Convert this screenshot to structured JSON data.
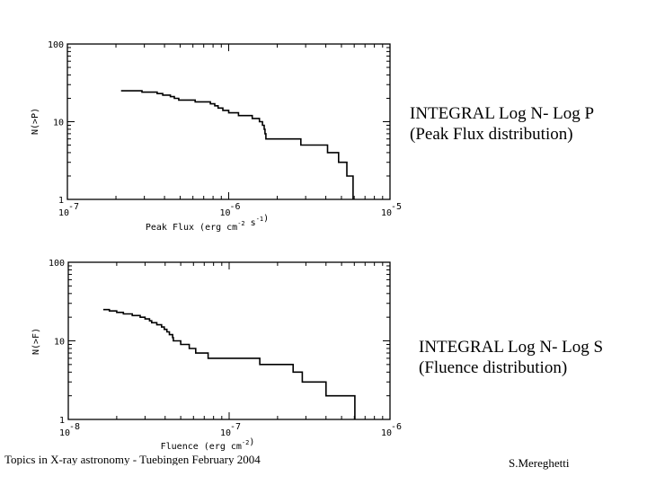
{
  "slide": {
    "captions": [
      {
        "line1": "INTEGRAL Log N- Log P",
        "line2": "(Peak Flux distribution)"
      },
      {
        "line1": "INTEGRAL Log N- Log S",
        "line2": "(Fluence distribution)"
      }
    ],
    "footer_left": "Topics in X-ray astronomy  -  Tuebingen  February 2004",
    "footer_right": "S.Mereghetti"
  },
  "chart_data": [
    {
      "type": "line",
      "subtype": "step (cumulative distribution)",
      "title": "INTEGRAL Log N- Log P (Peak Flux distribution)",
      "xlabel": "Peak Flux (erg cm^-2 s^-1)",
      "ylabel": "N(>P)",
      "xscale": "log",
      "yscale": "log",
      "xlim": [
        1e-07,
        1e-05
      ],
      "ylim": [
        1,
        100
      ],
      "xticks": [
        {
          "base": "10",
          "exp": "-7"
        },
        {
          "base": "10",
          "exp": "-6"
        },
        {
          "base": "10",
          "exp": "-5"
        }
      ],
      "yticks": [
        "1",
        "10",
        "100"
      ],
      "grid": false,
      "legend": null,
      "series": [
        {
          "name": "N(>P)",
          "points": [
            [
              2.15e-07,
              25
            ],
            [
              2.9e-07,
              24
            ],
            [
              3.6e-07,
              23
            ],
            [
              3.9e-07,
              22
            ],
            [
              4.35e-07,
              21
            ],
            [
              4.6e-07,
              20
            ],
            [
              4.9e-07,
              19
            ],
            [
              6.2e-07,
              18
            ],
            [
              7.7e-07,
              17
            ],
            [
              8.2e-07,
              16
            ],
            [
              8.6e-07,
              15
            ],
            [
              9.2e-07,
              14
            ],
            [
              1e-06,
              13
            ],
            [
              1.15e-06,
              12
            ],
            [
              1.4e-06,
              11
            ],
            [
              1.55e-06,
              10
            ],
            [
              1.62e-06,
              9
            ],
            [
              1.66e-06,
              8
            ],
            [
              1.68e-06,
              7
            ],
            [
              1.7e-06,
              6
            ],
            [
              2.8e-06,
              5
            ],
            [
              4.1e-06,
              4
            ],
            [
              4.8e-06,
              3
            ],
            [
              5.4e-06,
              2
            ],
            [
              5.9e-06,
              1
            ]
          ]
        }
      ]
    },
    {
      "type": "line",
      "subtype": "step (cumulative distribution)",
      "title": "INTEGRAL Log N- Log S (Fluence distribution)",
      "xlabel": "Fluence (erg cm^-2)",
      "ylabel": "N(>F)",
      "xscale": "log",
      "yscale": "log",
      "xlim": [
        1e-08,
        1e-06
      ],
      "ylim": [
        1,
        100
      ],
      "xticks": [
        {
          "base": "10",
          "exp": "-8"
        },
        {
          "base": "10",
          "exp": "-7"
        },
        {
          "base": "10",
          "exp": "-6"
        }
      ],
      "yticks": [
        "1",
        "10",
        "100"
      ],
      "grid": false,
      "legend": null,
      "series": [
        {
          "name": "N(>F)",
          "points": [
            [
              1.65e-08,
              25
            ],
            [
              1.8e-08,
              24
            ],
            [
              2e-08,
              23
            ],
            [
              2.2e-08,
              22
            ],
            [
              2.5e-08,
              21
            ],
            [
              2.8e-08,
              20
            ],
            [
              3e-08,
              19
            ],
            [
              3.2e-08,
              18
            ],
            [
              3.3e-08,
              17
            ],
            [
              3.55e-08,
              16
            ],
            [
              3.8e-08,
              15
            ],
            [
              3.95e-08,
              14
            ],
            [
              4.1e-08,
              13
            ],
            [
              4.25e-08,
              12
            ],
            [
              4.45e-08,
              11
            ],
            [
              4.5e-08,
              10
            ],
            [
              5e-08,
              9
            ],
            [
              5.65e-08,
              8
            ],
            [
              6.2e-08,
              7
            ],
            [
              7.4e-08,
              6
            ],
            [
              1.55e-07,
              5
            ],
            [
              2.5e-07,
              4
            ],
            [
              2.85e-07,
              3
            ],
            [
              4e-07,
              2
            ],
            [
              6.05e-07,
              1
            ]
          ]
        }
      ]
    }
  ]
}
